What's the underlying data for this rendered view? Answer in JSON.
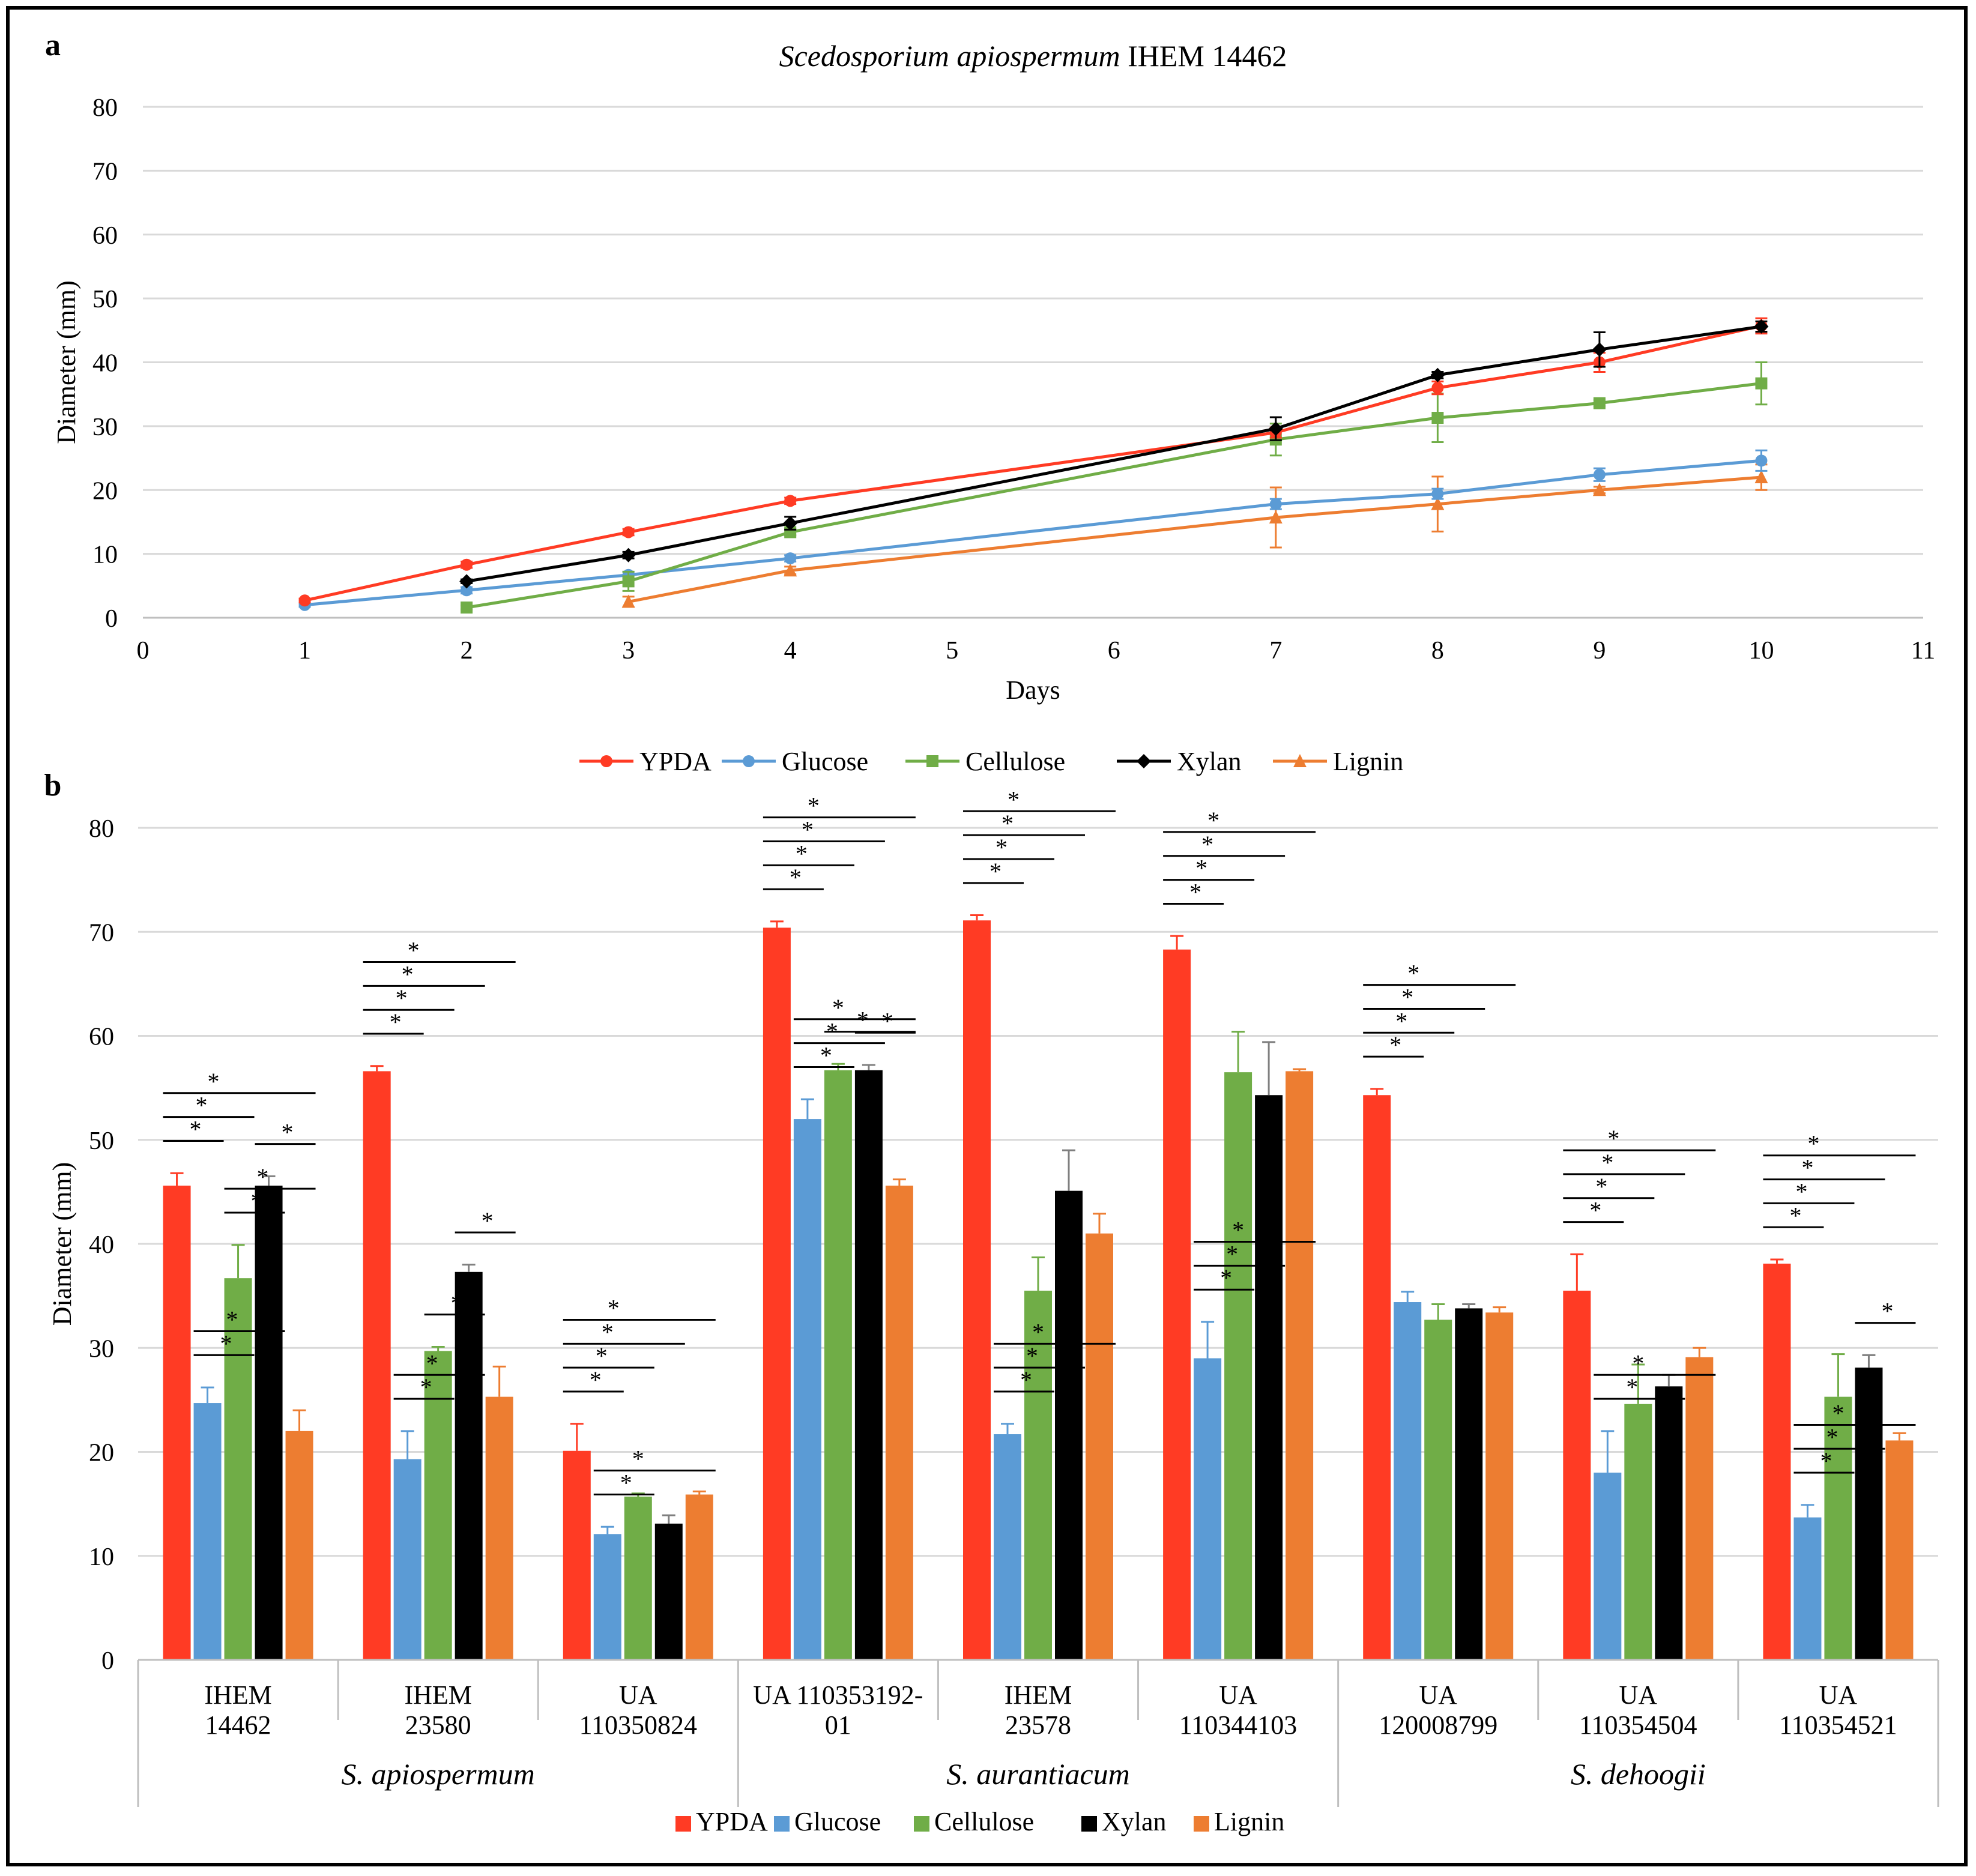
{
  "figure": {
    "panel_a_label": "a",
    "panel_b_label": "b"
  },
  "colors": {
    "YPDA": "#ff3b24",
    "Glucose": "#5b9bd5",
    "Cellulose": "#70ad47",
    "Xylan": "#000000",
    "Lignin": "#ed7d31",
    "grid": "#d9d9d9"
  },
  "chart_data": [
    {
      "panel": "a",
      "type": "line",
      "title": "Scedosporium apiospermum IHEM 14462",
      "title_italic_part": "Scedosporium apiospermum",
      "title_plain_part": " IHEM 14462",
      "xlabel": "Days",
      "ylabel": "Diameter (mm)",
      "x_ticks": [
        "0",
        "1",
        "2",
        "3",
        "4",
        "5",
        "6",
        "7",
        "8",
        "9",
        "10",
        "11"
      ],
      "y_ticks": [
        "0",
        "10",
        "20",
        "30",
        "40",
        "50",
        "60",
        "70",
        "80"
      ],
      "ylim": [
        0,
        80
      ],
      "grid": "horizontal",
      "legend_position": "bottom",
      "series": [
        {
          "name": "YPDA",
          "marker": "circle",
          "points": [
            [
              1,
              2.7
            ],
            [
              2,
              8.3
            ],
            [
              3,
              13.4
            ],
            [
              4,
              18.3
            ],
            [
              7,
              29.0
            ],
            [
              8,
              36.0
            ],
            [
              9,
              40.0
            ],
            [
              10,
              45.7
            ]
          ],
          "err": [
            0.3,
            0.5,
            0.5,
            0.5,
            0.8,
            1.0,
            1.5,
            1.2
          ]
        },
        {
          "name": "Glucose",
          "marker": "circle",
          "points": [
            [
              1,
              2.0
            ],
            [
              2,
              4.3
            ],
            [
              3,
              6.7
            ],
            [
              4,
              9.3
            ],
            [
              7,
              17.8
            ],
            [
              8,
              19.4
            ],
            [
              9,
              22.4
            ],
            [
              10,
              24.6
            ]
          ],
          "err": [
            0.3,
            0.5,
            0.5,
            0.5,
            0.8,
            0.8,
            1.0,
            1.6
          ]
        },
        {
          "name": "Cellulose",
          "marker": "square",
          "points": [
            [
              2,
              1.6
            ],
            [
              3,
              5.7
            ],
            [
              4,
              13.4
            ],
            [
              7,
              27.9
            ],
            [
              8,
              31.3
            ],
            [
              9,
              33.6
            ],
            [
              10,
              36.7
            ]
          ],
          "err": [
            0.3,
            1.5,
            0.5,
            2.5,
            3.8,
            0.5,
            3.3
          ]
        },
        {
          "name": "Xylan",
          "marker": "diamond",
          "points": [
            [
              2,
              5.7
            ],
            [
              3,
              9.8
            ],
            [
              4,
              14.8
            ],
            [
              7,
              29.6
            ],
            [
              8,
              38.0
            ],
            [
              9,
              42.0
            ],
            [
              10,
              45.6
            ]
          ],
          "err": [
            0.3,
            0.5,
            1.0,
            1.8,
            0.5,
            2.7,
            0.8
          ]
        },
        {
          "name": "Lignin",
          "marker": "triangle",
          "points": [
            [
              3,
              2.5
            ],
            [
              4,
              7.4
            ],
            [
              7,
              15.7
            ],
            [
              8,
              17.8
            ],
            [
              9,
              20.0
            ],
            [
              10,
              22.0
            ]
          ],
          "err": [
            0.8,
            0.6,
            4.7,
            4.3,
            0.5,
            2.0
          ]
        }
      ]
    },
    {
      "panel": "b",
      "type": "bar",
      "ylabel": "Diameter (mm)",
      "y_ticks": [
        "0",
        "10",
        "20",
        "30",
        "40",
        "50",
        "60",
        "70",
        "80"
      ],
      "ylim": [
        0,
        80
      ],
      "grid": "horizontal",
      "legend_position": "bottom",
      "categories": [
        {
          "line1": "IHEM",
          "line2": "14462"
        },
        {
          "line1": "IHEM",
          "line2": "23580"
        },
        {
          "line1": "UA",
          "line2": "110350824"
        },
        {
          "line1": "UA  110353192-",
          "line2": "01"
        },
        {
          "line1": "IHEM",
          "line2": "23578"
        },
        {
          "line1": "UA",
          "line2": "110344103"
        },
        {
          "line1": "UA",
          "line2": "120008799"
        },
        {
          "line1": "UA",
          "line2": "110354504"
        },
        {
          "line1": "UA",
          "line2": "110354521"
        }
      ],
      "groups": [
        {
          "label": "S. apiospermum",
          "span": [
            0,
            2
          ]
        },
        {
          "label": "S. aurantiacum",
          "span": [
            3,
            5
          ]
        },
        {
          "label": "S. dehoogii",
          "span": [
            6,
            8
          ]
        }
      ],
      "series": [
        {
          "name": "YPDA",
          "values": [
            45.6,
            56.6,
            20.1,
            70.4,
            71.1,
            68.3,
            54.3,
            35.5,
            38.1
          ],
          "err": [
            1.2,
            0.5,
            2.6,
            0.6,
            0.5,
            1.3,
            0.6,
            3.5,
            0.4
          ]
        },
        {
          "name": "Glucose",
          "values": [
            24.7,
            19.3,
            12.1,
            52.0,
            21.7,
            29.0,
            34.4,
            18.0,
            13.7
          ],
          "err": [
            1.5,
            2.7,
            0.7,
            1.9,
            1.0,
            3.5,
            1.0,
            4.0,
            1.2
          ]
        },
        {
          "name": "Cellulose",
          "values": [
            36.7,
            29.7,
            15.7,
            56.7,
            35.5,
            56.5,
            32.7,
            24.6,
            25.3
          ],
          "err": [
            3.2,
            0.4,
            0.3,
            0.6,
            3.2,
            3.9,
            1.5,
            3.8,
            4.1
          ]
        },
        {
          "name": "Xylan",
          "values": [
            45.6,
            37.3,
            13.1,
            56.7,
            45.1,
            54.3,
            33.8,
            26.3,
            28.1
          ],
          "err": [
            0.9,
            0.7,
            0.8,
            0.5,
            3.9,
            5.1,
            0.4,
            1.1,
            1.2
          ]
        },
        {
          "name": "Lignin",
          "values": [
            22.0,
            25.3,
            15.9,
            45.6,
            41.0,
            56.6,
            33.4,
            29.1,
            21.1
          ],
          "err": [
            2.0,
            2.9,
            0.3,
            0.6,
            1.9,
            0.2,
            0.5,
            0.9,
            0.7
          ]
        }
      ],
      "significance": [
        {
          "cat": 0,
          "comparisons": [
            [
              "YPDA",
              "Glucose"
            ],
            [
              "YPDA",
              "Cellulose"
            ],
            [
              "YPDA",
              "Lignin"
            ],
            [
              "Glucose",
              "Cellulose"
            ],
            [
              "Glucose",
              "Xylan"
            ],
            [
              "Cellulose",
              "Xylan"
            ],
            [
              "Cellulose",
              "Lignin"
            ],
            [
              "Xylan",
              "Lignin"
            ]
          ]
        },
        {
          "cat": 1,
          "comparisons": [
            [
              "YPDA",
              "Glucose"
            ],
            [
              "YPDA",
              "Cellulose"
            ],
            [
              "YPDA",
              "Xylan"
            ],
            [
              "YPDA",
              "Lignin"
            ],
            [
              "Glucose",
              "Cellulose"
            ],
            [
              "Glucose",
              "Xylan"
            ],
            [
              "Cellulose",
              "Xylan"
            ],
            [
              "Xylan",
              "Lignin"
            ]
          ]
        },
        {
          "cat": 2,
          "comparisons": [
            [
              "YPDA",
              "Glucose"
            ],
            [
              "YPDA",
              "Cellulose"
            ],
            [
              "YPDA",
              "Xylan"
            ],
            [
              "YPDA",
              "Lignin"
            ],
            [
              "Glucose",
              "Cellulose"
            ],
            [
              "Glucose",
              "Lignin"
            ]
          ]
        },
        {
          "cat": 3,
          "comparisons": [
            [
              "YPDA",
              "Glucose"
            ],
            [
              "YPDA",
              "Cellulose"
            ],
            [
              "YPDA",
              "Xylan"
            ],
            [
              "YPDA",
              "Lignin"
            ],
            [
              "Glucose",
              "Cellulose"
            ],
            [
              "Glucose",
              "Xylan"
            ],
            [
              "Glucose",
              "Lignin"
            ],
            [
              "Cellulose",
              "Lignin"
            ],
            [
              "Xylan",
              "Lignin"
            ]
          ]
        },
        {
          "cat": 4,
          "comparisons": [
            [
              "YPDA",
              "Glucose"
            ],
            [
              "YPDA",
              "Cellulose"
            ],
            [
              "YPDA",
              "Xylan"
            ],
            [
              "YPDA",
              "Lignin"
            ],
            [
              "Glucose",
              "Cellulose"
            ],
            [
              "Glucose",
              "Xylan"
            ],
            [
              "Glucose",
              "Lignin"
            ]
          ]
        },
        {
          "cat": 5,
          "comparisons": [
            [
              "YPDA",
              "Glucose"
            ],
            [
              "YPDA",
              "Cellulose"
            ],
            [
              "YPDA",
              "Xylan"
            ],
            [
              "YPDA",
              "Lignin"
            ],
            [
              "Glucose",
              "Cellulose"
            ],
            [
              "Glucose",
              "Xylan"
            ],
            [
              "Glucose",
              "Lignin"
            ]
          ]
        },
        {
          "cat": 6,
          "comparisons": [
            [
              "YPDA",
              "Glucose"
            ],
            [
              "YPDA",
              "Cellulose"
            ],
            [
              "YPDA",
              "Xylan"
            ],
            [
              "YPDA",
              "Lignin"
            ]
          ]
        },
        {
          "cat": 7,
          "comparisons": [
            [
              "YPDA",
              "Glucose"
            ],
            [
              "YPDA",
              "Cellulose"
            ],
            [
              "YPDA",
              "Xylan"
            ],
            [
              "YPDA",
              "Lignin"
            ],
            [
              "Glucose",
              "Xylan"
            ],
            [
              "Glucose",
              "Lignin"
            ]
          ]
        },
        {
          "cat": 8,
          "comparisons": [
            [
              "YPDA",
              "Glucose"
            ],
            [
              "YPDA",
              "Cellulose"
            ],
            [
              "YPDA",
              "Xylan"
            ],
            [
              "YPDA",
              "Lignin"
            ],
            [
              "Glucose",
              "Cellulose"
            ],
            [
              "Glucose",
              "Xylan"
            ],
            [
              "Glucose",
              "Lignin"
            ],
            [
              "Xylan",
              "Lignin"
            ]
          ]
        }
      ],
      "significance_symbol": "*"
    }
  ]
}
